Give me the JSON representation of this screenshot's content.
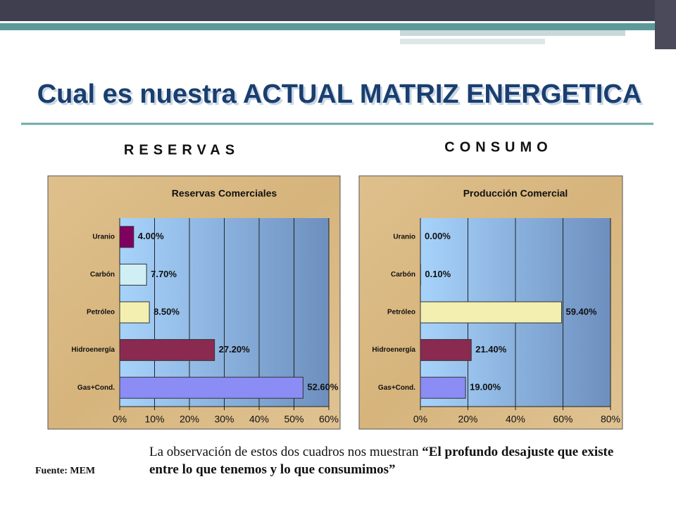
{
  "slide": {
    "title": "Cual es nuestra ACTUAL MATRIZ ENERGETICA",
    "left_heading": "RESERVAS",
    "right_heading": "CONSUMO",
    "source": "Fuente: MEM",
    "note": "La observación de estos dos cuadros nos muestran ",
    "note_emphasis": "“El profundo desajuste que existe entre lo que tenemos y lo que consumimos”"
  },
  "chart_data": [
    {
      "type": "bar",
      "orientation": "horizontal",
      "title": "Reservas Comerciales",
      "categories": [
        "Uranio",
        "Carbón",
        "Petróleo",
        "Hidroenergía",
        "Gas+Cond."
      ],
      "values": [
        4.0,
        7.7,
        8.5,
        27.2,
        52.6
      ],
      "value_labels": [
        "4.00%",
        "7.70%",
        "8.50%",
        "27.20%",
        "52.60%"
      ],
      "colors": [
        "#800060",
        "#cfeff5",
        "#f3efb0",
        "#8a2a50",
        "#8c8cf5"
      ],
      "xlim": [
        0,
        60
      ],
      "xticks": [
        {
          "value": 0,
          "label": "0%"
        },
        {
          "value": 10,
          "label": "10%"
        },
        {
          "value": 20,
          "label": "20%"
        },
        {
          "value": 30,
          "label": "30%"
        },
        {
          "value": 40,
          "label": "40%"
        },
        {
          "value": 50,
          "label": "50%"
        },
        {
          "value": 60,
          "label": "60%"
        }
      ],
      "grid": true
    },
    {
      "type": "bar",
      "orientation": "horizontal",
      "title": "Producción Comercial",
      "categories": [
        "Uranio",
        "Carbón",
        "Petróleo",
        "Hidroenergía",
        "Gas+Cond."
      ],
      "values": [
        0.0,
        0.1,
        59.4,
        21.4,
        19.0
      ],
      "value_labels": [
        "0.00%",
        "0.10%",
        "59.40%",
        "21.40%",
        "19.00%"
      ],
      "colors": [
        "#800060",
        "#cfeff5",
        "#f3efb0",
        "#8a2a50",
        "#8c8cf5"
      ],
      "xlim": [
        0,
        80
      ],
      "xticks": [
        {
          "value": 0,
          "label": "0%"
        },
        {
          "value": 20,
          "label": "20%"
        },
        {
          "value": 40,
          "label": "40%"
        },
        {
          "value": 60,
          "label": "60%"
        },
        {
          "value": 80,
          "label": "80%"
        }
      ],
      "grid": true
    }
  ]
}
